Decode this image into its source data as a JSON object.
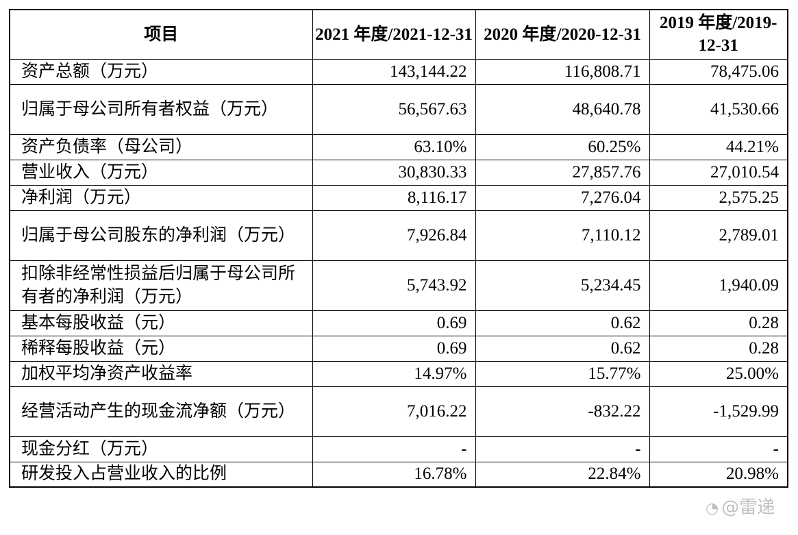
{
  "table": {
    "headers": [
      "项目",
      "2021 年度/2021-12-31",
      "2020 年度/2020-12-31",
      "2019 年度/2019-12-31"
    ],
    "rows": [
      {
        "label": "资产总额（万元）",
        "values": [
          "143,144.22",
          "116,808.71",
          "78,475.06"
        ]
      },
      {
        "label": "归属于母公司所有者权益（万元）",
        "values": [
          "56,567.63",
          "48,640.78",
          "41,530.66"
        ]
      },
      {
        "label": "资产负债率（母公司）",
        "values": [
          "63.10%",
          "60.25%",
          "44.21%"
        ]
      },
      {
        "label": "营业收入（万元）",
        "values": [
          "30,830.33",
          "27,857.76",
          "27,010.54"
        ]
      },
      {
        "label": "净利润（万元）",
        "values": [
          "8,116.17",
          "7,276.04",
          "2,575.25"
        ]
      },
      {
        "label": "归属于母公司股东的净利润（万元）",
        "values": [
          "7,926.84",
          "7,110.12",
          "2,789.01"
        ]
      },
      {
        "label": "扣除非经常性损益后归属于母公司所有者的净利润（万元）",
        "values": [
          "5,743.92",
          "5,234.45",
          "1,940.09"
        ]
      },
      {
        "label": "基本每股收益（元）",
        "values": [
          "0.69",
          "0.62",
          "0.28"
        ]
      },
      {
        "label": "稀释每股收益（元）",
        "values": [
          "0.69",
          "0.62",
          "0.28"
        ]
      },
      {
        "label": "加权平均净资产收益率",
        "values": [
          "14.97%",
          "15.77%",
          "25.00%"
        ]
      },
      {
        "label": "经营活动产生的现金流净额（万元）",
        "values": [
          "7,016.22",
          "-832.22",
          "-1,529.99"
        ]
      },
      {
        "label": "现金分红（万元）",
        "values": [
          "-",
          "-",
          "-"
        ]
      },
      {
        "label": "研发投入占营业收入的比例",
        "values": [
          "16.78%",
          "22.84%",
          "20.98%"
        ]
      }
    ]
  },
  "watermark": {
    "text": "@雷递",
    "icon": "weibo-icon"
  }
}
